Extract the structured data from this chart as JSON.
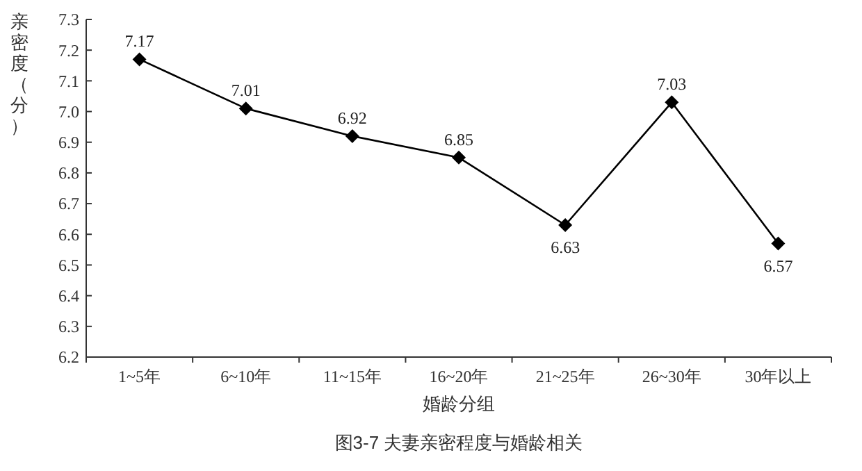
{
  "chart_data": {
    "type": "line",
    "xlabel": "婚龄分组",
    "ylabel": "亲密度（分）",
    "annotations": [
      "图3-7 夫妻亲密程度与婚龄相关"
    ],
    "categories": [
      "1~5年",
      "6~10年",
      "11~15年",
      "16~20年",
      "21~25年",
      "26~30年",
      "30年以上"
    ],
    "series": [
      {
        "color": "#000000",
        "values": [
          7.17,
          7.01,
          6.92,
          6.85,
          6.63,
          7.03,
          6.57
        ]
      }
    ],
    "ylim": [
      6.2,
      7.3
    ],
    "yticks": [
      6.2,
      6.3,
      6.4,
      6.5,
      6.6,
      6.7,
      6.8,
      6.9,
      {
        "value": 7,
        "label": "7.0"
      },
      7.1,
      7.2,
      7.3
    ],
    "data_labels": true,
    "marker": "diamond",
    "line_style": "solid",
    "grid": false
  }
}
